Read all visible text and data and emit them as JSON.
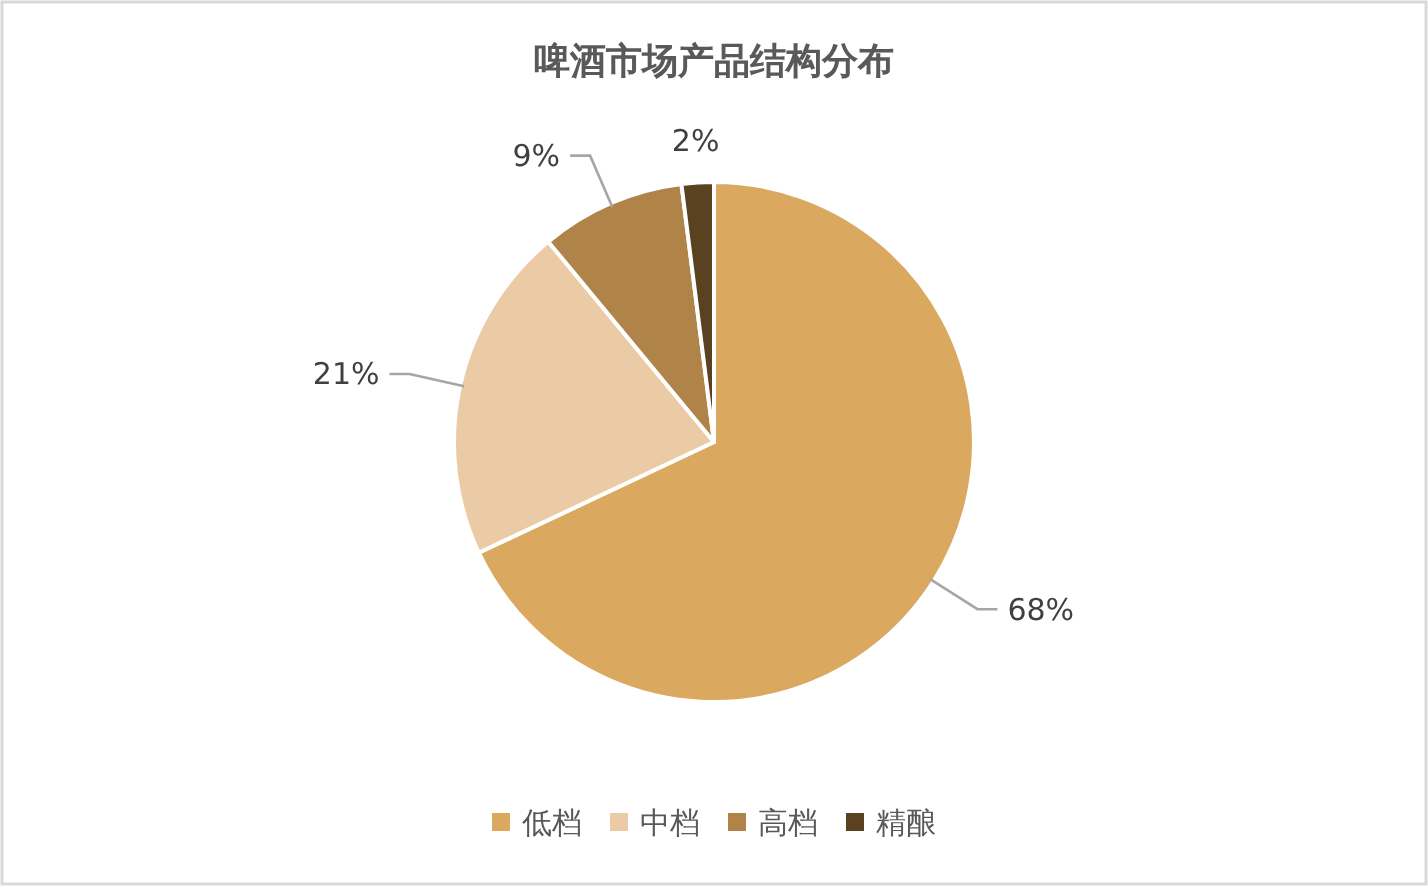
{
  "chart_data": {
    "type": "pie",
    "title": "啤酒市场产品结构分布",
    "categories": [
      "低档",
      "中档",
      "高档",
      "精酿"
    ],
    "values": [
      68,
      21,
      9,
      2
    ],
    "colors": [
      "#dba85f",
      "#ebcba5",
      "#b08449",
      "#5a4120"
    ],
    "value_labels": [
      "68%",
      "21%",
      "9%",
      "2%"
    ],
    "legend": "bottom"
  }
}
